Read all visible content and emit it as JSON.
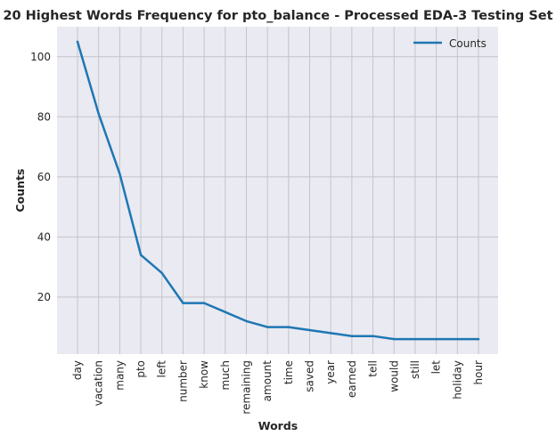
{
  "chart_data": {
    "type": "line",
    "title": "20 Highest Words Frequency for pto_balance - Processed EDA-3 Testing Set",
    "xlabel": "Words",
    "ylabel": "Counts",
    "categories": [
      "day",
      "vacation",
      "many",
      "pto",
      "left",
      "number",
      "know",
      "much",
      "remaining",
      "amount",
      "time",
      "saved",
      "year",
      "earned",
      "tell",
      "would",
      "still",
      "let",
      "holiday",
      "hour"
    ],
    "series": [
      {
        "name": "Counts",
        "values": [
          105,
          81,
          61,
          34,
          28,
          18,
          18,
          15,
          12,
          10,
          10,
          9,
          8,
          7,
          7,
          6,
          6,
          6,
          6,
          6
        ]
      }
    ],
    "ylim": [
      1,
      110
    ],
    "yticks": [
      20,
      40,
      60,
      80,
      100
    ],
    "grid": true,
    "legend_position": "top-right",
    "colors": {
      "plot_background": "#eaeaf2",
      "grid": "#c4c4c8",
      "line": "#1f77b4",
      "frame": "#c0c0c8"
    }
  }
}
